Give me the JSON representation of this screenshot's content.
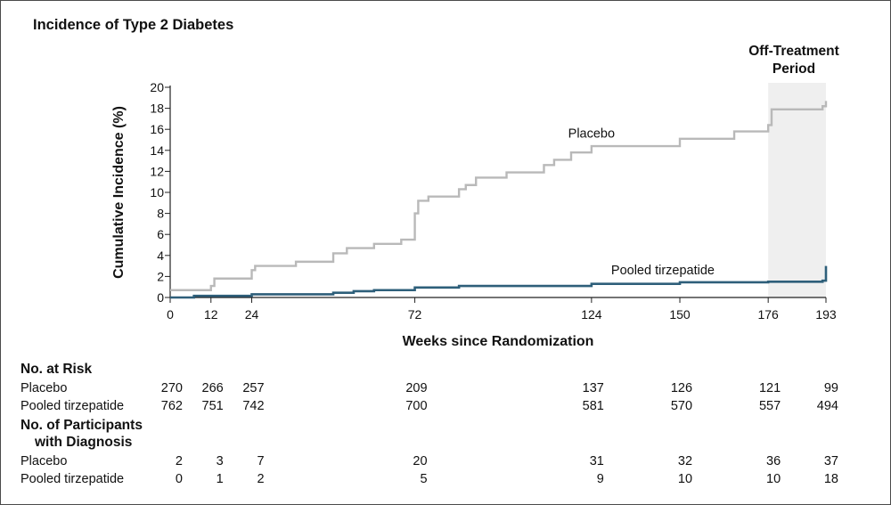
{
  "figure": {
    "off_treatment_label": "Off-Treatment Period"
  },
  "chart_data": {
    "type": "line",
    "title": "Incidence of Type 2 Diabetes",
    "xlabel": "Weeks since Randomization",
    "ylabel": "Cumulative Incidence (%)",
    "xlim": [
      0,
      193
    ],
    "ylim": [
      0,
      20
    ],
    "xticks": [
      0,
      12,
      24,
      72,
      124,
      150,
      176,
      193
    ],
    "yticks": [
      0,
      2,
      4,
      6,
      8,
      10,
      12,
      14,
      16,
      18,
      20
    ],
    "shaded_region": {
      "x_start": 176,
      "x_end": 193,
      "label": "Off-Treatment Period"
    },
    "series": [
      {
        "name": "Placebo",
        "label": "Placebo",
        "color": "#b9b9b9",
        "step": true,
        "points": [
          [
            0,
            0.7
          ],
          [
            12,
            1.1
          ],
          [
            13,
            1.8
          ],
          [
            24,
            2.6
          ],
          [
            25,
            3.0
          ],
          [
            37,
            3.4
          ],
          [
            48,
            4.2
          ],
          [
            52,
            4.7
          ],
          [
            60,
            5.1
          ],
          [
            68,
            5.5
          ],
          [
            72,
            8.0
          ],
          [
            73,
            9.2
          ],
          [
            76,
            9.6
          ],
          [
            85,
            10.3
          ],
          [
            87,
            10.7
          ],
          [
            90,
            11.4
          ],
          [
            99,
            11.9
          ],
          [
            110,
            12.6
          ],
          [
            113,
            13.1
          ],
          [
            118,
            13.8
          ],
          [
            124,
            14.4
          ],
          [
            150,
            15.1
          ],
          [
            166,
            15.8
          ],
          [
            176,
            16.4
          ],
          [
            177,
            17.9
          ],
          [
            192,
            18.2
          ],
          [
            193,
            18.7
          ]
        ]
      },
      {
        "name": "Pooled tirzepatide",
        "label": "Pooled tirzepatide",
        "color": "#2e5f7a",
        "step": true,
        "points": [
          [
            0,
            0.0
          ],
          [
            7,
            0.15
          ],
          [
            24,
            0.3
          ],
          [
            48,
            0.45
          ],
          [
            54,
            0.6
          ],
          [
            60,
            0.7
          ],
          [
            72,
            0.95
          ],
          [
            85,
            1.1
          ],
          [
            124,
            1.3
          ],
          [
            150,
            1.45
          ],
          [
            176,
            1.5
          ],
          [
            192,
            1.6
          ],
          [
            193,
            2.2
          ],
          [
            193,
            3.0
          ]
        ]
      }
    ]
  },
  "risk_table": {
    "header_at_risk": "No. at Risk",
    "header_diagnosis_line1": "No. of Participants",
    "header_diagnosis_line2": "with Diagnosis",
    "weeks": [
      0,
      12,
      24,
      72,
      124,
      150,
      176,
      193
    ],
    "at_risk": [
      {
        "label": "Placebo",
        "values": [
          "270",
          "266",
          "257",
          "209",
          "137",
          "126",
          "121",
          "99"
        ]
      },
      {
        "label": "Pooled tirzepatide",
        "values": [
          "762",
          "751",
          "742",
          "700",
          "581",
          "570",
          "557",
          "494"
        ]
      }
    ],
    "diagnosis": [
      {
        "label": "Placebo",
        "values": [
          "2",
          "3",
          "7",
          "20",
          "31",
          "32",
          "36",
          "37"
        ]
      },
      {
        "label": "Pooled tirzepatide",
        "values": [
          "0",
          "1",
          "2",
          "5",
          "9",
          "10",
          "10",
          "18"
        ]
      }
    ]
  }
}
